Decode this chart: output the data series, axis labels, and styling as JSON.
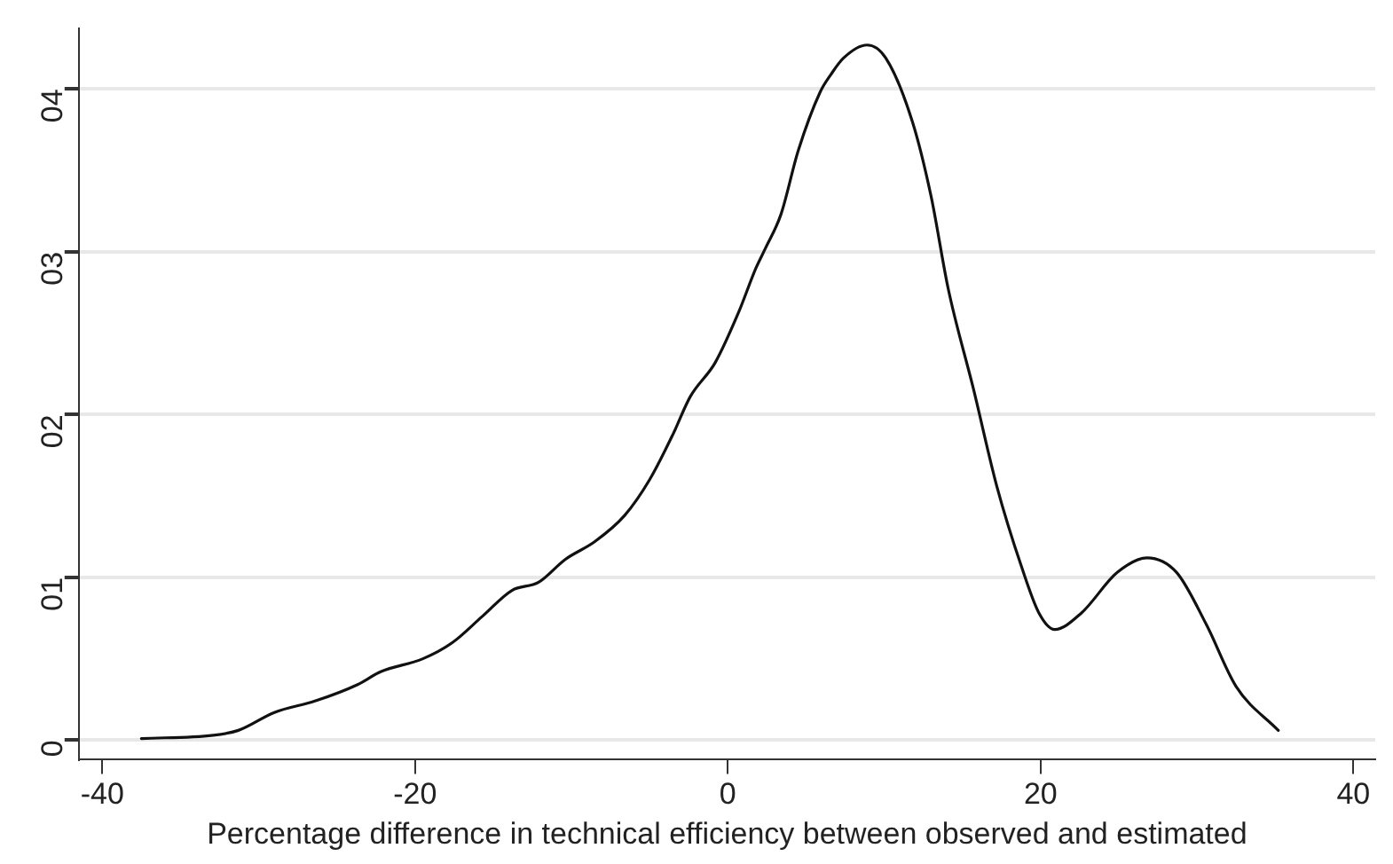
{
  "chart_data": {
    "type": "line",
    "xlabel": "Percentage difference in technical efficiency between observed and estimated",
    "x": [
      -37.5,
      -32.9,
      -31.3,
      -29.0,
      -26.4,
      -23.7,
      -22.2,
      -19.5,
      -17.6,
      -15.7,
      -13.8,
      -12.1,
      -10.4,
      -8.5,
      -6.6,
      -5.0,
      -3.5,
      -2.4,
      -0.8,
      0.7,
      1.8,
      2.4,
      3.4,
      4.5,
      5.9,
      6.6,
      7.4,
      8.9,
      10.1,
      11.8,
      13.0,
      14.1,
      15.7,
      17.2,
      18.8,
      19.9,
      20.9,
      22.6,
      24.9,
      26.8,
      28.7,
      30.6,
      32.5,
      35.2
    ],
    "series": [
      {
        "color": "#111111",
        "values": [
          0.01,
          0.03,
          0.06,
          0.17,
          0.24,
          0.34,
          0.42,
          0.5,
          0.6,
          0.76,
          0.92,
          0.97,
          1.11,
          1.22,
          1.38,
          1.6,
          1.88,
          2.11,
          2.32,
          2.63,
          2.9,
          3.02,
          3.23,
          3.62,
          3.98,
          4.09,
          4.19,
          4.27,
          4.19,
          3.8,
          3.34,
          2.77,
          2.16,
          1.56,
          1.06,
          0.78,
          0.68,
          0.78,
          1.03,
          1.12,
          1.03,
          0.71,
          0.33,
          0.06
        ]
      }
    ],
    "xlim": [
      -41.5,
      41.4
    ],
    "xticks": [
      -40,
      -20,
      0,
      20,
      40
    ],
    "ylim": [
      -0.12,
      4.37
    ],
    "yticks": [
      0,
      {
        "value": 1,
        "label": "01"
      },
      {
        "value": 2,
        "label": "02"
      },
      {
        "value": 3,
        "label": "03"
      },
      {
        "value": 4,
        "label": "04"
      }
    ],
    "grid": "y",
    "line_style": "solid"
  }
}
